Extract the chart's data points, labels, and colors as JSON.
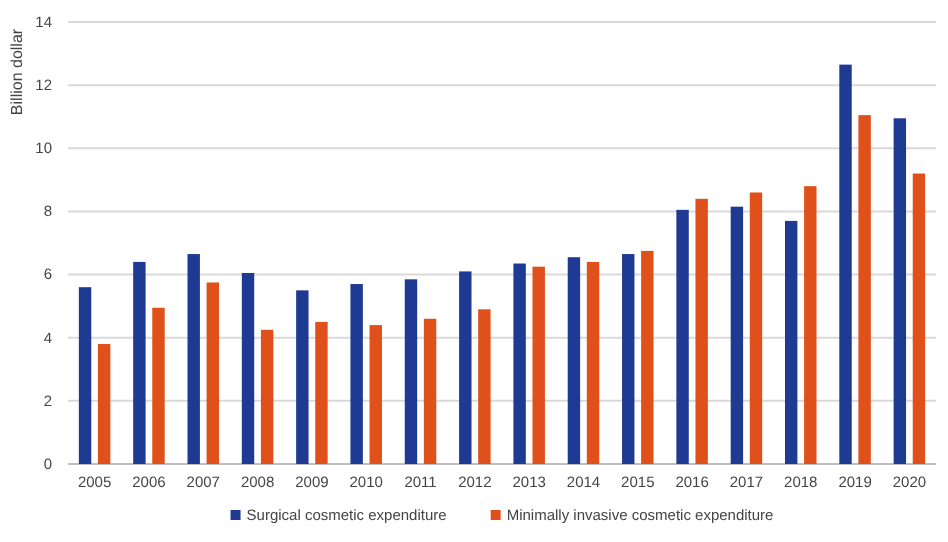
{
  "chart_data": {
    "type": "bar",
    "ylabel": "Billion dollar",
    "categories": [
      "2005",
      "2006",
      "2007",
      "2008",
      "2009",
      "2010",
      "2011",
      "2012",
      "2013",
      "2014",
      "2015",
      "2016",
      "2017",
      "2018",
      "2019",
      "2020"
    ],
    "series": [
      {
        "name": "Surgical cosmetic expenditure",
        "color": "#1f3a93",
        "values": [
          5.6,
          6.4,
          6.65,
          6.05,
          5.5,
          5.7,
          5.85,
          6.1,
          6.35,
          6.55,
          6.65,
          8.05,
          8.15,
          7.7,
          12.65,
          10.95
        ]
      },
      {
        "name": "Minimally invasive cosmetic expenditure",
        "color": "#e0501a",
        "values": [
          3.8,
          4.95,
          5.75,
          4.25,
          4.5,
          4.4,
          4.6,
          4.9,
          6.25,
          6.4,
          6.75,
          8.4,
          8.6,
          8.8,
          11.05,
          9.2
        ]
      }
    ],
    "ylim": [
      0,
      14
    ],
    "yticks": [
      0,
      2,
      4,
      6,
      8,
      10,
      12,
      14
    ],
    "grid": "y",
    "legend": "bottom"
  }
}
